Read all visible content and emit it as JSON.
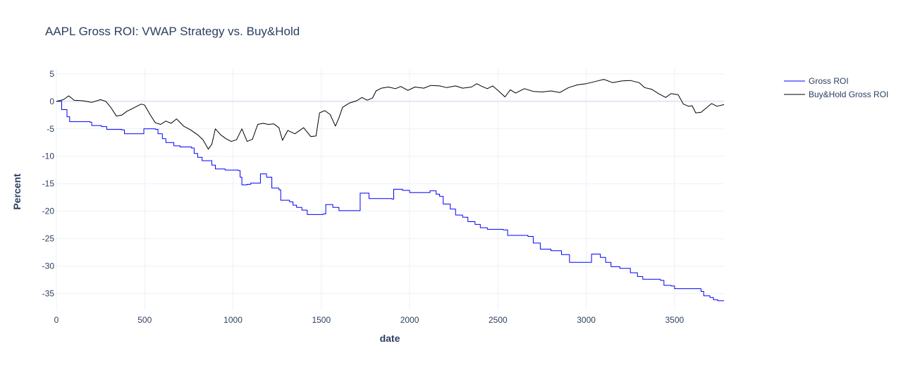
{
  "chart_data": {
    "type": "line",
    "title": "AAPL Gross ROI: VWAP Strategy vs. Buy&Hold",
    "xlabel": "date",
    "ylabel": "Percent",
    "xlim": [
      0,
      3780
    ],
    "ylim": [
      -38,
      6
    ],
    "x_ticks": [
      0,
      500,
      1000,
      1500,
      2000,
      2500,
      3000,
      3500
    ],
    "y_ticks": [
      5,
      0,
      -5,
      -10,
      -15,
      -20,
      -25,
      -30,
      -35
    ],
    "grid": true,
    "legend_position": "top-right",
    "series": [
      {
        "name": "Gross ROI",
        "color": "#0000ff",
        "step": true,
        "points": [
          [
            0,
            0
          ],
          [
            30,
            -1.5
          ],
          [
            60,
            -2.8
          ],
          [
            75,
            -3.7
          ],
          [
            190,
            -3.8
          ],
          [
            200,
            -4.4
          ],
          [
            255,
            -4.6
          ],
          [
            285,
            -5.1
          ],
          [
            370,
            -5.2
          ],
          [
            385,
            -5.9
          ],
          [
            480,
            -5.9
          ],
          [
            495,
            -5.0
          ],
          [
            560,
            -5.1
          ],
          [
            575,
            -5.9
          ],
          [
            600,
            -6.8
          ],
          [
            620,
            -7.5
          ],
          [
            665,
            -8.1
          ],
          [
            700,
            -8.3
          ],
          [
            765,
            -8.5
          ],
          [
            780,
            -9.5
          ],
          [
            800,
            -10.2
          ],
          [
            825,
            -10.8
          ],
          [
            880,
            -11.6
          ],
          [
            900,
            -12.3
          ],
          [
            955,
            -12.5
          ],
          [
            1030,
            -12.6
          ],
          [
            1040,
            -13.8
          ],
          [
            1050,
            -15.2
          ],
          [
            1080,
            -15.1
          ],
          [
            1100,
            -14.9
          ],
          [
            1150,
            -14.9
          ],
          [
            1155,
            -13.2
          ],
          [
            1190,
            -13.8
          ],
          [
            1220,
            -15.8
          ],
          [
            1260,
            -16.1
          ],
          [
            1270,
            -18.0
          ],
          [
            1320,
            -18.3
          ],
          [
            1340,
            -18.9
          ],
          [
            1360,
            -19.3
          ],
          [
            1390,
            -19.8
          ],
          [
            1420,
            -20.6
          ],
          [
            1510,
            -20.5
          ],
          [
            1525,
            -18.8
          ],
          [
            1565,
            -19.3
          ],
          [
            1600,
            -19.9
          ],
          [
            1715,
            -19.9
          ],
          [
            1720,
            -16.7
          ],
          [
            1770,
            -17.7
          ],
          [
            1900,
            -17.8
          ],
          [
            1910,
            -16.0
          ],
          [
            1960,
            -16.2
          ],
          [
            2000,
            -16.6
          ],
          [
            2100,
            -16.6
          ],
          [
            2115,
            -16.3
          ],
          [
            2150,
            -16.9
          ],
          [
            2170,
            -17.3
          ],
          [
            2190,
            -18.7
          ],
          [
            2230,
            -19.6
          ],
          [
            2260,
            -20.7
          ],
          [
            2300,
            -21.1
          ],
          [
            2330,
            -21.9
          ],
          [
            2370,
            -22.4
          ],
          [
            2400,
            -23.0
          ],
          [
            2440,
            -23.3
          ],
          [
            2530,
            -23.4
          ],
          [
            2555,
            -24.4
          ],
          [
            2670,
            -24.6
          ],
          [
            2700,
            -25.8
          ],
          [
            2740,
            -26.9
          ],
          [
            2800,
            -27.2
          ],
          [
            2860,
            -27.9
          ],
          [
            2905,
            -29.3
          ],
          [
            3020,
            -29.3
          ],
          [
            3030,
            -27.8
          ],
          [
            3080,
            -28.4
          ],
          [
            3110,
            -29.3
          ],
          [
            3140,
            -30.1
          ],
          [
            3190,
            -30.4
          ],
          [
            3250,
            -31.2
          ],
          [
            3290,
            -31.9
          ],
          [
            3320,
            -32.4
          ],
          [
            3420,
            -32.6
          ],
          [
            3440,
            -33.5
          ],
          [
            3480,
            -33.6
          ],
          [
            3500,
            -34.1
          ],
          [
            3610,
            -34.1
          ],
          [
            3650,
            -34.6
          ],
          [
            3665,
            -35.4
          ],
          [
            3700,
            -35.7
          ],
          [
            3720,
            -36.1
          ],
          [
            3745,
            -36.3
          ],
          [
            3780,
            -36.3
          ]
        ]
      },
      {
        "name": "Buy&Hold Gross ROI",
        "color": "#000000",
        "step": false,
        "points": [
          [
            0,
            0
          ],
          [
            40,
            0.3
          ],
          [
            70,
            1.0
          ],
          [
            100,
            0.2
          ],
          [
            150,
            0.1
          ],
          [
            200,
            -0.2
          ],
          [
            250,
            0.3
          ],
          [
            280,
            0.0
          ],
          [
            310,
            -1.2
          ],
          [
            340,
            -2.7
          ],
          [
            370,
            -2.5
          ],
          [
            400,
            -1.8
          ],
          [
            450,
            -1.0
          ],
          [
            480,
            -0.5
          ],
          [
            500,
            -0.7
          ],
          [
            530,
            -2.4
          ],
          [
            560,
            -3.9
          ],
          [
            590,
            -4.2
          ],
          [
            620,
            -3.6
          ],
          [
            650,
            -4.0
          ],
          [
            680,
            -3.2
          ],
          [
            720,
            -4.5
          ],
          [
            760,
            -5.2
          ],
          [
            800,
            -6.1
          ],
          [
            830,
            -7.0
          ],
          [
            860,
            -8.7
          ],
          [
            880,
            -7.8
          ],
          [
            900,
            -5.0
          ],
          [
            930,
            -6.1
          ],
          [
            960,
            -6.8
          ],
          [
            990,
            -7.3
          ],
          [
            1020,
            -7.0
          ],
          [
            1050,
            -5.0
          ],
          [
            1080,
            -7.3
          ],
          [
            1110,
            -6.9
          ],
          [
            1140,
            -4.2
          ],
          [
            1170,
            -4.0
          ],
          [
            1200,
            -4.2
          ],
          [
            1230,
            -4.1
          ],
          [
            1260,
            -4.8
          ],
          [
            1280,
            -7.1
          ],
          [
            1310,
            -5.3
          ],
          [
            1350,
            -5.9
          ],
          [
            1400,
            -4.8
          ],
          [
            1440,
            -6.4
          ],
          [
            1470,
            -6.3
          ],
          [
            1490,
            -2.1
          ],
          [
            1520,
            -1.7
          ],
          [
            1550,
            -2.4
          ],
          [
            1580,
            -4.5
          ],
          [
            1600,
            -3.0
          ],
          [
            1620,
            -1.1
          ],
          [
            1660,
            -0.3
          ],
          [
            1700,
            0.1
          ],
          [
            1730,
            0.7
          ],
          [
            1760,
            0.2
          ],
          [
            1790,
            0.6
          ],
          [
            1810,
            1.9
          ],
          [
            1840,
            2.4
          ],
          [
            1880,
            2.6
          ],
          [
            1920,
            2.3
          ],
          [
            1950,
            2.7
          ],
          [
            1990,
            2.0
          ],
          [
            2030,
            2.6
          ],
          [
            2080,
            2.4
          ],
          [
            2120,
            2.9
          ],
          [
            2170,
            2.8
          ],
          [
            2210,
            2.5
          ],
          [
            2260,
            2.8
          ],
          [
            2300,
            2.4
          ],
          [
            2350,
            2.6
          ],
          [
            2380,
            3.2
          ],
          [
            2410,
            2.7
          ],
          [
            2440,
            2.3
          ],
          [
            2470,
            2.8
          ],
          [
            2500,
            2.0
          ],
          [
            2540,
            0.8
          ],
          [
            2570,
            2.1
          ],
          [
            2600,
            1.5
          ],
          [
            2650,
            2.3
          ],
          [
            2700,
            1.8
          ],
          [
            2750,
            1.7
          ],
          [
            2800,
            1.9
          ],
          [
            2850,
            1.6
          ],
          [
            2900,
            2.5
          ],
          [
            2950,
            3.0
          ],
          [
            3000,
            3.2
          ],
          [
            3050,
            3.6
          ],
          [
            3100,
            4.0
          ],
          [
            3150,
            3.4
          ],
          [
            3200,
            3.7
          ],
          [
            3250,
            3.8
          ],
          [
            3300,
            3.4
          ],
          [
            3330,
            2.5
          ],
          [
            3370,
            2.2
          ],
          [
            3410,
            1.4
          ],
          [
            3450,
            0.7
          ],
          [
            3480,
            1.4
          ],
          [
            3520,
            1.2
          ],
          [
            3550,
            -0.5
          ],
          [
            3580,
            -0.9
          ],
          [
            3600,
            -0.8
          ],
          [
            3620,
            -2.1
          ],
          [
            3650,
            -2.0
          ],
          [
            3680,
            -1.2
          ],
          [
            3710,
            -0.4
          ],
          [
            3740,
            -0.9
          ],
          [
            3780,
            -0.6
          ]
        ]
      }
    ]
  }
}
